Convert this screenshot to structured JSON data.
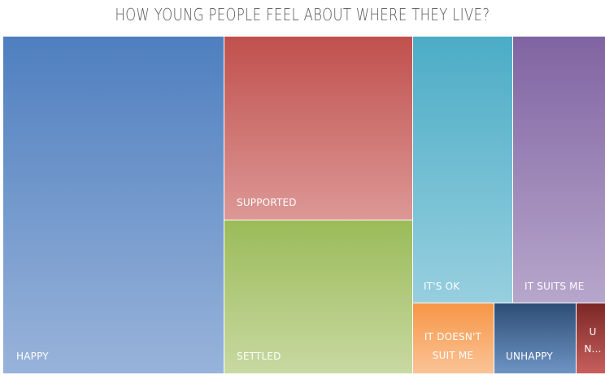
{
  "chart_data": {
    "type": "treemap",
    "title": "HOW YOUNG PEOPLE FEEL ABOUT WHERE THEY LIVE?",
    "items": [
      {
        "label": "HAPPY",
        "value": 36,
        "color_top": "#4f7fbf",
        "color_bottom": "#98b3da"
      },
      {
        "label": "SUPPORTED",
        "value": 17,
        "color_top": "#c0504d",
        "color_bottom": "#dc9896"
      },
      {
        "label": "SETTLED",
        "value": 14,
        "color_top": "#9bbb59",
        "color_bottom": "#c8d9a2"
      },
      {
        "label": "IT'S OK",
        "value": 13,
        "color_top": "#4bacc6",
        "color_bottom": "#97cfdf"
      },
      {
        "label": "IT SUITS ME",
        "value": 13,
        "color_top": "#8064a2",
        "color_bottom": "#b7a6cb"
      },
      {
        "label": "IT DOESN'T SUIT ME",
        "value": 3,
        "color_top": "#f79646",
        "color_bottom": "#fbc396"
      },
      {
        "label": "UNHAPPY",
        "value": 3,
        "color_top": "#2c4d75",
        "color_bottom": "#6f94c4"
      },
      {
        "label": "UN...",
        "value": 1,
        "color_top": "#7b2826",
        "color_bottom": "#c75f5c"
      }
    ]
  }
}
